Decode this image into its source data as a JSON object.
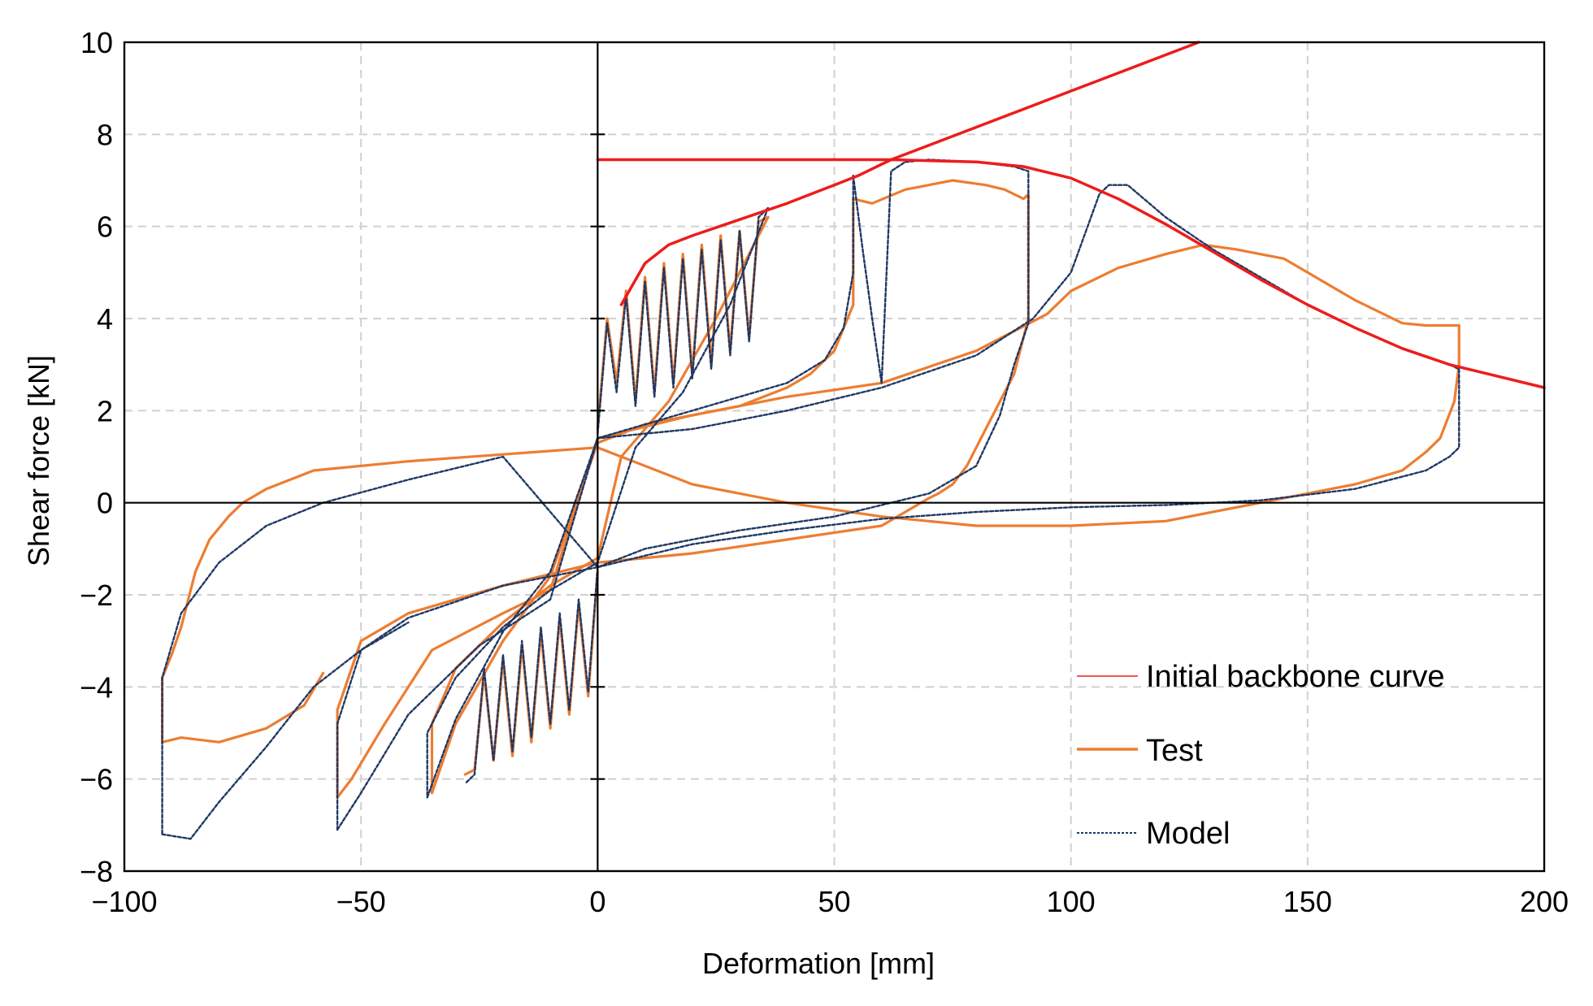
{
  "chart_data": {
    "type": "line",
    "title": "",
    "xlabel": "Deformation [mm]",
    "ylabel": "Shear force [kN]",
    "xlim": [
      -100,
      200
    ],
    "ylim": [
      -8,
      10
    ],
    "xticks": [
      -100,
      -50,
      0,
      50,
      100,
      150,
      200
    ],
    "yticks": [
      -8,
      -6,
      -4,
      -2,
      0,
      2,
      4,
      6,
      8,
      10
    ],
    "xtick_labels": [
      "−100",
      "−50",
      "0",
      "50",
      "100",
      "150",
      "200"
    ],
    "ytick_labels": [
      "−8",
      "−6",
      "−4",
      "−2",
      "0",
      "2",
      "4",
      "6",
      "8",
      "10"
    ],
    "grid": true,
    "legend_position": "bottom-right",
    "colors": {
      "backbone": "#ee1c1c",
      "test": "#ed7d31",
      "model": "#1f3864",
      "grid": "#d0d0d0",
      "axis": "#000000"
    },
    "series": [
      {
        "name": "Initial backbone curve",
        "style": "solid-thin",
        "segments": [
          {
            "x": [
              0,
              62
            ],
            "y": [
              7.45,
              7.45
            ]
          },
          {
            "x": [
              5,
              10,
              15,
              20,
              30,
              40,
              50,
              55,
              62,
              80,
              90,
              100,
              110,
              120,
              130,
              140,
              150,
              160,
              170,
              180,
              190,
              200
            ],
            "y": [
              4.3,
              5.2,
              5.6,
              5.8,
              6.15,
              6.5,
              6.9,
              7.1,
              7.45,
              7.4,
              7.3,
              7.05,
              6.6,
              6.05,
              5.45,
              4.85,
              4.3,
              3.8,
              3.35,
              3.0,
              2.75,
              2.5
            ]
          },
          {
            "x": [
              62,
              127
            ],
            "y": [
              7.45,
              10.0
            ]
          }
        ]
      },
      {
        "name": "Test",
        "style": "solid",
        "segments": [
          {
            "x": [
              0,
              2,
              4,
              6,
              8,
              10,
              12,
              14,
              16,
              18,
              20,
              22,
              24,
              26,
              28,
              30,
              32,
              34,
              36
            ],
            "y": [
              1.6,
              4.0,
              2.6,
              4.6,
              2.2,
              4.9,
              2.4,
              5.2,
              2.6,
              5.4,
              2.8,
              5.6,
              3.0,
              5.8,
              3.3,
              5.9,
              3.6,
              6.1,
              6.2
            ]
          },
          {
            "x": [
              0,
              -2,
              -4,
              -6,
              -8,
              -10,
              -12,
              -14,
              -16,
              -18,
              -20,
              -22,
              -24,
              -26,
              -28
            ],
            "y": [
              -1.5,
              -4.2,
              -2.2,
              -4.6,
              -2.5,
              -4.9,
              -2.8,
              -5.2,
              -3.1,
              -5.5,
              -3.4,
              -5.6,
              -3.7,
              -5.8,
              -5.9
            ]
          },
          {
            "x": [
              36,
              25,
              15,
              5,
              0,
              -10,
              -20,
              -30,
              -35,
              -35
            ],
            "y": [
              6.2,
              4.0,
              2.2,
              1.0,
              -1.2,
              -1.8,
              -2.6,
              -3.6,
              -4.8,
              -6.3
            ]
          },
          {
            "x": [
              -35,
              -30,
              -20,
              -10,
              0,
              10,
              20,
              30,
              40,
              45,
              50,
              54,
              54
            ],
            "y": [
              -6.3,
              -4.8,
              -3.0,
              -1.6,
              1.3,
              1.7,
              1.9,
              2.1,
              2.5,
              2.8,
              3.3,
              4.3,
              6.6
            ]
          },
          {
            "x": [
              54,
              58,
              65,
              75,
              82,
              86,
              90,
              91,
              91,
              88,
              82,
              78,
              75,
              72,
              70,
              60,
              40,
              20,
              0,
              -20,
              -40,
              -50,
              -55,
              -55
            ],
            "y": [
              6.6,
              6.5,
              6.8,
              7.0,
              6.9,
              6.8,
              6.6,
              6.7,
              4.0,
              2.8,
              1.6,
              0.8,
              0.4,
              0.2,
              0.1,
              -0.5,
              -0.8,
              -1.1,
              -1.3,
              -1.8,
              -2.4,
              -3.0,
              -4.5,
              -6.4
            ]
          },
          {
            "x": [
              -55,
              -52,
              -45,
              -35,
              -20,
              -10,
              0,
              20,
              40,
              60,
              80,
              95,
              100,
              110,
              120,
              128,
              135,
              140,
              145,
              150,
              160,
              170,
              175,
              182,
              182
            ],
            "y": [
              -6.4,
              -6.0,
              -4.8,
              -3.2,
              -2.4,
              -1.9,
              1.4,
              1.9,
              2.3,
              2.6,
              3.3,
              4.1,
              4.6,
              5.1,
              5.4,
              5.6,
              5.5,
              5.4,
              5.3,
              5.0,
              4.4,
              3.9,
              3.85,
              3.85,
              3.0
            ]
          },
          {
            "x": [
              182,
              181,
              178,
              175,
              170,
              160,
              150,
              140,
              120,
              100,
              80,
              60,
              40,
              20,
              0,
              -20,
              -40,
              -60,
              -70,
              -75,
              -78,
              -82,
              -85,
              -88,
              -90,
              -92,
              -92
            ],
            "y": [
              3.0,
              2.2,
              1.4,
              1.1,
              0.7,
              0.4,
              0.2,
              0.0,
              -0.4,
              -0.5,
              -0.5,
              -0.3,
              0.0,
              0.4,
              1.2,
              1.05,
              0.9,
              0.7,
              0.3,
              0.0,
              -0.3,
              -0.8,
              -1.5,
              -2.7,
              -3.3,
              -3.8,
              -5.2
            ]
          },
          {
            "x": [
              -92,
              -88,
              -80,
              -70,
              -62,
              -58
            ],
            "y": [
              -5.2,
              -5.1,
              -5.2,
              -4.9,
              -4.4,
              -3.7
            ]
          }
        ]
      },
      {
        "name": "Model",
        "style": "dashed",
        "segments": [
          {
            "x": [
              0,
              2,
              4,
              6,
              8,
              10,
              12,
              14,
              16,
              18,
              20,
              22,
              24,
              26,
              28,
              30,
              32,
              34,
              36
            ],
            "y": [
              1.5,
              3.9,
              2.4,
              4.5,
              2.1,
              4.8,
              2.3,
              5.1,
              2.5,
              5.3,
              2.7,
              5.5,
              2.9,
              5.7,
              3.2,
              5.9,
              3.5,
              6.2,
              6.4
            ]
          },
          {
            "x": [
              0,
              -2,
              -4,
              -6,
              -8,
              -10,
              -12,
              -14,
              -16,
              -18,
              -20,
              -22,
              -24,
              -26,
              -28
            ],
            "y": [
              -1.4,
              -4.1,
              -2.1,
              -4.5,
              -2.4,
              -4.8,
              -2.7,
              -5.1,
              -3.0,
              -5.4,
              -3.3,
              -5.6,
              -3.6,
              -5.9,
              -6.1
            ]
          },
          {
            "x": [
              36,
              28,
              18,
              8,
              0,
              -10,
              -20,
              -30,
              -36,
              -36
            ],
            "y": [
              6.4,
              4.3,
              2.4,
              1.2,
              -1.3,
              -1.9,
              -2.7,
              -3.8,
              -5.0,
              -6.4
            ]
          },
          {
            "x": [
              -36,
              -30,
              -20,
              -10,
              0,
              10,
              20,
              30,
              40,
              48,
              52,
              54,
              54
            ],
            "y": [
              -6.4,
              -4.7,
              -2.8,
              -1.5,
              1.4,
              1.7,
              2.0,
              2.3,
              2.6,
              3.1,
              3.8,
              5.0,
              7.1
            ]
          },
          {
            "x": [
              54,
              56,
              58,
              60,
              62,
              65,
              70,
              80,
              88,
              91,
              91,
              88,
              85,
              80,
              70,
              50,
              30,
              10,
              0,
              -20,
              -40,
              -50,
              -55,
              -55
            ],
            "y": [
              7.1,
              5.5,
              4.0,
              2.6,
              7.2,
              7.4,
              7.45,
              7.4,
              7.3,
              7.2,
              3.9,
              3.0,
              1.9,
              0.8,
              0.2,
              -0.3,
              -0.6,
              -1.0,
              -1.4,
              -1.8,
              -2.5,
              -3.2,
              -4.8,
              -7.1
            ]
          },
          {
            "x": [
              -55,
              -50,
              -40,
              -25,
              -10,
              0,
              20,
              40,
              60,
              80,
              92,
              100,
              106,
              108,
              112,
              120,
              130
            ],
            "y": [
              -7.1,
              -6.3,
              -4.6,
              -3.1,
              -2.1,
              1.4,
              1.6,
              2.0,
              2.5,
              3.2,
              4.0,
              5.0,
              6.7,
              6.9,
              6.9,
              6.2,
              5.5
            ]
          },
          {
            "x": [
              130,
              140,
              150,
              160,
              170,
              180,
              182,
              182,
              180,
              175,
              160,
              140,
              120,
              100,
              80,
              60,
              40,
              20,
              0,
              -20,
              -40,
              -58,
              -70,
              -80,
              -88,
              -92,
              -92
            ],
            "y": [
              5.5,
              4.9,
              4.3,
              3.8,
              3.35,
              3.0,
              2.9,
              1.2,
              1.0,
              0.7,
              0.3,
              0.05,
              -0.05,
              -0.1,
              -0.2,
              -0.35,
              -0.6,
              -0.9,
              -1.4,
              1.0,
              0.5,
              0.0,
              -0.5,
              -1.3,
              -2.4,
              -3.8,
              -7.2
            ]
          },
          {
            "x": [
              -92,
              -86,
              -80,
              -70,
              -60,
              -50,
              -40
            ],
            "y": [
              -7.2,
              -7.3,
              -6.5,
              -5.3,
              -4.0,
              -3.2,
              -2.6
            ]
          }
        ]
      }
    ]
  }
}
